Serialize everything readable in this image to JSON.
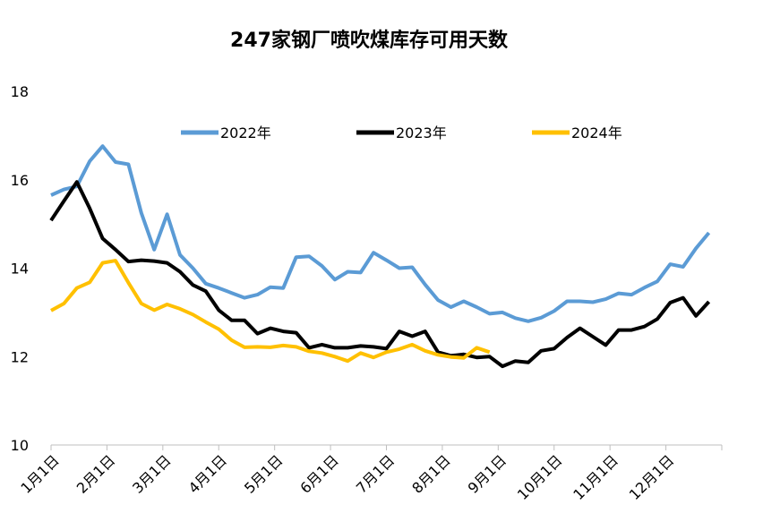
{
  "chart_data": {
    "type": "line",
    "title": "247家钢厂喷吹煤库存可用天数",
    "xlabel": "",
    "ylabel": "",
    "ylim": [
      10,
      18
    ],
    "yticks": [
      "10",
      "12",
      "14",
      "16",
      "18"
    ],
    "x_tick_labels": [
      "1月1日",
      "2月1日",
      "3月1日",
      "4月1日",
      "5月1日",
      "6月1日",
      "7月1日",
      "8月1日",
      "9月1日",
      "10月1日",
      "11月1日",
      "12月1日"
    ],
    "x_week_range": [
      0,
      52
    ],
    "grid": false,
    "legend_position": "top",
    "series": [
      {
        "name": "2022年",
        "color": "#5B9BD5",
        "week": [
          0,
          1,
          2,
          3,
          4,
          5,
          6,
          7,
          8,
          9,
          10,
          11,
          12,
          13,
          14,
          15,
          16,
          17,
          18,
          19,
          20,
          21,
          22,
          23,
          24,
          25,
          26,
          27,
          28,
          29,
          30,
          31,
          32,
          33,
          34,
          35,
          36,
          37,
          38,
          39,
          40,
          41,
          42,
          43,
          44,
          45,
          46,
          47,
          48,
          49,
          50,
          51,
          52
        ],
        "values": [
          15.65,
          15.78,
          15.85,
          16.42,
          16.76,
          16.4,
          16.35,
          15.25,
          14.42,
          15.22,
          14.3,
          14.0,
          13.65,
          13.55,
          13.44,
          13.33,
          13.4,
          13.57,
          13.55,
          14.25,
          14.27,
          14.05,
          13.74,
          13.92,
          13.9,
          14.35,
          14.18,
          14.0,
          14.02,
          13.63,
          13.28,
          13.12,
          13.25,
          13.12,
          12.97,
          13.0,
          12.87,
          12.8,
          12.88,
          13.03,
          13.25,
          13.25,
          13.23,
          13.3,
          13.43,
          13.4,
          13.56,
          13.7,
          14.09,
          14.03,
          14.45,
          14.8,
          null
        ]
      },
      {
        "name": "2023年",
        "color": "#000000",
        "week": [
          0,
          1,
          2,
          3,
          4,
          5,
          6,
          7,
          8,
          9,
          10,
          11,
          12,
          13,
          14,
          15,
          16,
          17,
          18,
          19,
          20,
          21,
          22,
          23,
          24,
          25,
          26,
          27,
          28,
          29,
          30,
          31,
          32,
          33,
          34,
          35,
          36,
          37,
          38,
          39,
          40,
          41,
          42,
          43,
          44,
          45,
          46,
          47,
          48,
          49,
          50,
          51,
          52
        ],
        "values": [
          15.08,
          15.52,
          15.95,
          15.35,
          14.67,
          14.42,
          14.15,
          14.18,
          14.16,
          14.12,
          13.92,
          13.62,
          13.48,
          13.05,
          12.82,
          12.82,
          12.52,
          12.64,
          12.57,
          12.54,
          12.2,
          12.27,
          12.2,
          12.2,
          12.24,
          12.22,
          12.18,
          12.57,
          12.46,
          12.57,
          12.1,
          12.02,
          12.05,
          11.98,
          12.0,
          11.78,
          11.9,
          11.87,
          12.13,
          12.18,
          12.43,
          12.64,
          12.45,
          12.26,
          12.6,
          12.6,
          12.68,
          12.85,
          13.22,
          13.33,
          12.92,
          13.24,
          null
        ]
      },
      {
        "name": "2024年",
        "color": "#FFC000",
        "week": [
          0,
          1,
          2,
          3,
          4,
          5,
          6,
          7,
          8,
          9,
          10,
          11,
          12,
          13,
          14,
          15,
          16,
          17,
          18,
          19,
          20,
          21,
          22,
          23,
          24,
          25,
          26,
          27,
          28,
          29,
          30,
          31,
          32,
          33,
          34,
          35
        ],
        "values": [
          13.04,
          13.2,
          13.55,
          13.68,
          14.12,
          14.17,
          13.67,
          13.2,
          13.05,
          13.18,
          13.08,
          12.95,
          12.78,
          12.62,
          12.37,
          12.21,
          12.22,
          12.21,
          12.25,
          12.22,
          12.12,
          12.08,
          12.0,
          11.9,
          12.08,
          11.98,
          12.1,
          12.17,
          12.27,
          12.13,
          12.04,
          11.99,
          11.97,
          12.2,
          12.1,
          null
        ]
      }
    ]
  }
}
